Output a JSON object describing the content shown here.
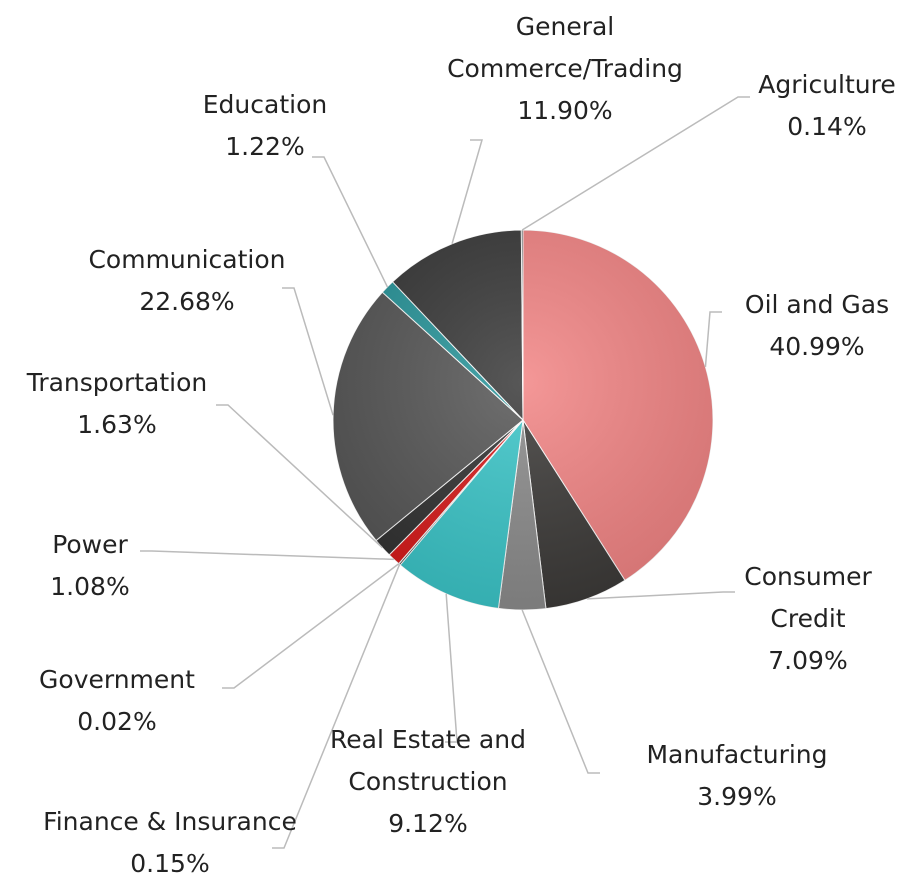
{
  "chart_data": {
    "type": "pie",
    "categories": [
      "Oil and Gas",
      "Consumer Credit",
      "Manufacturing",
      "Real Estate and Construction",
      "Finance & Insurance",
      "Government",
      "Power",
      "Transportation",
      "Communication",
      "Education",
      "General Commerce/Trading",
      "Agriculture"
    ],
    "values": [
      40.99,
      7.09,
      3.99,
      9.12,
      0.15,
      0.02,
      1.08,
      1.63,
      22.68,
      1.22,
      11.9,
      0.14
    ],
    "value_labels": [
      "40.99%",
      "7.09%",
      "3.99%",
      "9.12%",
      "0.15%",
      "0.02%",
      "1.08%",
      "1.63%",
      "22.68%",
      "1.22%",
      "11.90%",
      "0.14%"
    ],
    "colors": [
      "#f28585",
      "#3d3b39",
      "#8c8c8c",
      "#3cc6c9",
      "#2f2f2f",
      "#444444",
      "#d81c1c",
      "#333333",
      "#575757",
      "#2a969b",
      "#3a3a3a",
      "#4a4a4a"
    ]
  }
}
